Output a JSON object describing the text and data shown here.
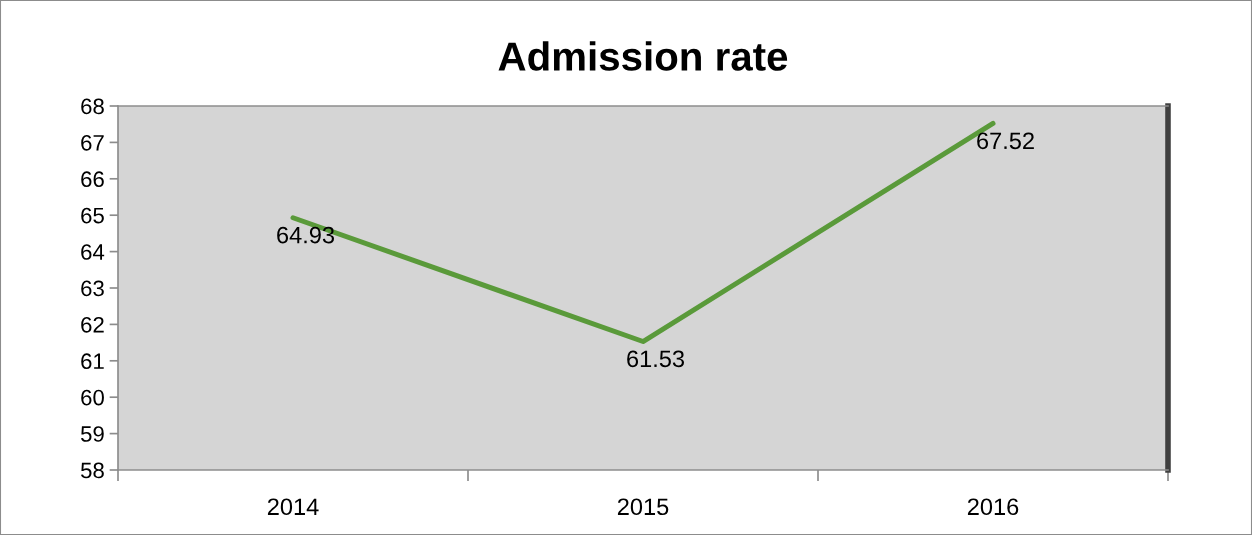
{
  "chart_data": {
    "type": "line",
    "title": "Admission rate",
    "categories": [
      "2014",
      "2015",
      "2016"
    ],
    "series": [
      {
        "color": "#5a9a3a",
        "values": [
          64.93,
          61.53,
          67.52
        ]
      }
    ],
    "ylim": [
      58,
      68
    ],
    "yticks": [
      58,
      59,
      60,
      61,
      62,
      63,
      64,
      65,
      66,
      67,
      68
    ],
    "data_labels": true,
    "grid": false,
    "marker": "none",
    "line_style": "solid"
  }
}
